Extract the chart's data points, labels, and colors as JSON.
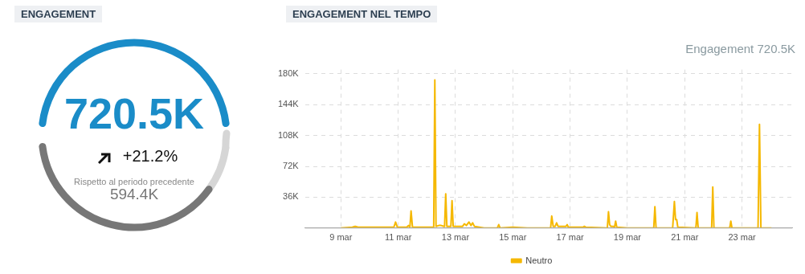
{
  "chart_data": [
    {
      "type": "other",
      "title": "ENGAGEMENT",
      "annotations": [
        "720.5K",
        "+21.2%",
        "Rispetto al periodo precedente",
        "594.4K"
      ]
    },
    {
      "type": "line",
      "title": "ENGAGEMENT NEL TEMPO",
      "annotations": [
        "Engagement 720.5K"
      ],
      "xlim": [
        "--03-07T18:00",
        "--03-24T18:00"
      ],
      "xticks": [
        {
          "value": "--03-09",
          "label": "9 mar"
        },
        {
          "value": "--03-11",
          "label": "11 mar"
        },
        {
          "value": "--03-13",
          "label": "13 mar"
        },
        {
          "value": "--03-15",
          "label": "15 mar"
        },
        {
          "value": "--03-17",
          "label": "17 mar"
        },
        {
          "value": "--03-19",
          "label": "19 mar"
        },
        {
          "value": "--03-21",
          "label": "21 mar"
        },
        {
          "value": "--03-23",
          "label": "23 mar"
        }
      ],
      "ylim": [
        0,
        185000
      ],
      "yticks": [
        {
          "value": 36000,
          "label": "36K"
        },
        {
          "value": 72000,
          "label": "72K"
        },
        {
          "value": 108000,
          "label": "108K"
        },
        {
          "value": 144000,
          "label": "144K"
        },
        {
          "value": 180000,
          "label": "180K"
        }
      ],
      "grid": true,
      "legend": "bottom",
      "marker": "none",
      "line_style": "solid",
      "series": [
        {
          "name": "Neutro",
          "color": "#f5b800",
          "x": [
            "--03-09T00:00",
            "--03-09T09:36",
            "--03-09T12:00",
            "--03-09T14:24",
            "--03-09T21:36",
            "--03-10T00:00",
            "--03-10T02:24",
            "--03-10T12:00",
            "--03-10T20:24",
            "--03-10T21:50",
            "--03-10T23:17",
            "--03-11T07:12",
            "--03-11T08:38",
            "--03-11T09:50",
            "--03-11T10:48",
            "--03-11T12:00",
            "--03-11T19:12",
            "--03-12T05:46",
            "--03-12T06:43",
            "--03-12T07:41",
            "--03-12T10:05",
            "--03-12T12:00",
            "--03-12T14:24",
            "--03-12T14:53",
            "--03-12T15:50",
            "--03-12T16:48",
            "--03-12T20:10",
            "--03-12T21:07",
            "--03-12T22:05",
            "--03-13T06:00",
            "--03-13T07:26",
            "--03-13T09:07",
            "--03-13T11:17",
            "--03-13T12:58",
            "--03-13T14:24",
            "--03-13T15:50",
            "--03-14T00:00",
            "--03-14T11:02",
            "--03-14T12:14",
            "--03-14T13:26",
            "--03-15T00:00",
            "--03-15T12:00",
            "--03-16T00:00",
            "--03-16T07:41",
            "--03-16T08:38",
            "--03-16T09:50",
            "--03-16T11:31",
            "--03-16T12:43",
            "--03-16T13:55",
            "--03-16T20:38",
            "--03-16T21:36",
            "--03-16T22:34",
            "--03-17T10:48",
            "--03-17T12:00",
            "--03-17T13:12",
            "--03-18T07:12",
            "--03-18T08:10",
            "--03-18T09:07",
            "--03-18T10:05",
            "--03-18T12:00",
            "--03-18T13:12",
            "--03-18T14:10",
            "--03-18T15:07",
            "--03-19T00:00",
            "--03-19T12:00",
            "--03-19T22:05",
            "--03-19T23:02",
            "--03-20T00:00",
            "--03-20T13:55",
            "--03-20T15:22",
            "--03-20T16:19",
            "--03-20T17:17",
            "--03-20T18:14",
            "--03-21T09:22",
            "--03-21T10:19",
            "--03-21T11:17",
            "--03-21T22:34",
            "--03-21T23:31",
            "--03-22T00:29",
            "--03-22T13:41",
            "--03-22T14:38",
            "--03-22T15:36",
            "--03-23T00:00",
            "--03-23T13:26",
            "--03-23T14:38",
            "--03-23T15:50",
            "--03-24T00:43"
          ],
          "values": [
            0,
            1000,
            2000,
            1000,
            1000,
            1000,
            1000,
            1000,
            1000,
            7000,
            1000,
            1000,
            3000,
            1000,
            20000,
            1000,
            1000,
            1000,
            173000,
            2000,
            3000,
            3000,
            2000,
            2000,
            40000,
            2000,
            2000,
            32000,
            2000,
            2000,
            5000,
            3000,
            7000,
            3000,
            6000,
            2000,
            0,
            0,
            4000,
            0,
            1000,
            0,
            0,
            0,
            14000,
            2000,
            2000,
            6000,
            2000,
            2000,
            4000,
            1000,
            1000,
            2000,
            1000,
            0,
            19000,
            4000,
            2000,
            2000,
            1000,
            8000,
            1000,
            0,
            0,
            0,
            25000,
            0,
            0,
            31000,
            10000,
            10000,
            1000,
            0,
            18000,
            0,
            0,
            48000,
            0,
            0,
            8000,
            0,
            0,
            0,
            121000,
            0,
            0
          ]
        }
      ]
    }
  ]
}
